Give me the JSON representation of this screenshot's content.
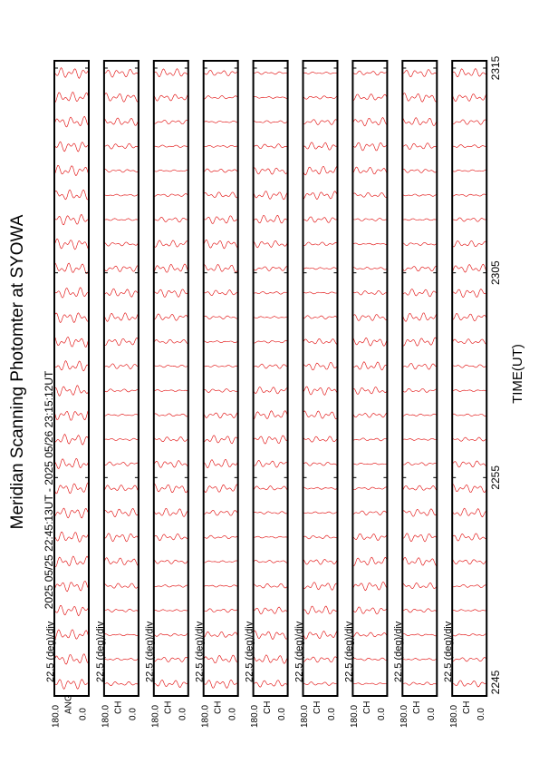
{
  "header": {
    "title": "Meridian Scanning Photomter at SYOWA",
    "period": "2025 05/25 22:45:13UT - 2025 05/26 23:15:12UT"
  },
  "panels": [
    {
      "scale": "22.5 (deg)/div",
      "max": "180.0",
      "channel": "ANG",
      "min": "0.0"
    },
    {
      "scale": "22.5 (deg)/div",
      "max": "180.0",
      "channel": "CH",
      "min": "0.0"
    },
    {
      "scale": "22.5 (deg)/div",
      "max": "180.0",
      "channel": "CH",
      "min": "0.0"
    },
    {
      "scale": "22.5 (deg)/div",
      "max": "180.0",
      "channel": "CH",
      "min": "0.0"
    },
    {
      "scale": "22.5 (deg)/div",
      "max": "180.0",
      "channel": "CH",
      "min": "0.0"
    },
    {
      "scale": "22.5 (deg)/div",
      "max": "180.0",
      "channel": "CH",
      "min": "0.0"
    },
    {
      "scale": "22.5 (deg)/div",
      "max": "180.0",
      "channel": "CH",
      "min": "0.0"
    },
    {
      "scale": "22.5 (deg)/div",
      "max": "180.0",
      "channel": "CH",
      "min": "0.0"
    },
    {
      "scale": "22.5 (deg)/div",
      "max": "180.0",
      "channel": "CH",
      "min": "0.0"
    }
  ],
  "time_axis": {
    "label": "TIME(UT)",
    "ticks": [
      "2245",
      "2255",
      "2305",
      "2315"
    ]
  }
}
